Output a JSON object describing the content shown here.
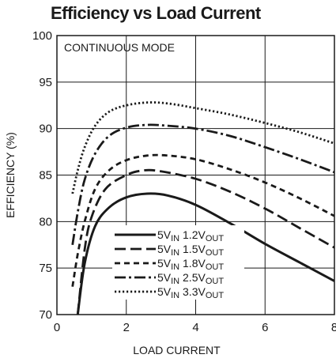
{
  "chart_data": {
    "type": "line",
    "title": "Efficiency vs Load Current",
    "xlabel": "LOAD CURRENT",
    "ylabel": "EFFICIENCY (%)",
    "xlim": [
      0,
      8
    ],
    "ylim": [
      70,
      100
    ],
    "x_ticks": [
      "0",
      "2",
      "4",
      "6",
      "8"
    ],
    "y_ticks": [
      "70",
      "75",
      "80",
      "85",
      "90",
      "95",
      "100"
    ],
    "grid": true,
    "annotation": "CONTINUOUS MODE",
    "legend_position": "bottom-center",
    "series": [
      {
        "name": "5VIN 1.2VOUT",
        "legend": {
          "a": "5V",
          "b": "IN",
          "c": " 1.2V",
          "d": "OUT"
        },
        "style": "solid",
        "points": [
          [
            0.6,
            70
          ],
          [
            0.8,
            75.5
          ],
          [
            1.1,
            79.5
          ],
          [
            1.5,
            81.5
          ],
          [
            2,
            82.6
          ],
          [
            2.6,
            83.0
          ],
          [
            3.2,
            82.8
          ],
          [
            4,
            81.8
          ],
          [
            5,
            79.8
          ],
          [
            6,
            77.6
          ],
          [
            7,
            75.6
          ],
          [
            8,
            73.6
          ]
        ]
      },
      {
        "name": "5VIN 1.5VOUT",
        "legend": {
          "a": "5V",
          "b": "IN",
          "c": " 1.5V",
          "d": "OUT"
        },
        "style": "dash",
        "points": [
          [
            0.6,
            70
          ],
          [
            0.8,
            77
          ],
          [
            1.0,
            80.5
          ],
          [
            1.4,
            83.5
          ],
          [
            2,
            85.0
          ],
          [
            2.5,
            85.5
          ],
          [
            3,
            85.4
          ],
          [
            4,
            84.6
          ],
          [
            5,
            83.2
          ],
          [
            6,
            81.4
          ],
          [
            7,
            79.3
          ],
          [
            8,
            77.2
          ]
        ]
      },
      {
        "name": "5VIN 1.8VOUT",
        "legend": {
          "a": "5V",
          "b": "IN",
          "c": " 1.8V",
          "d": "OUT"
        },
        "style": "shortdash",
        "points": [
          [
            0.45,
            73
          ],
          [
            0.6,
            76.5
          ],
          [
            0.8,
            80
          ],
          [
            1.1,
            83.5
          ],
          [
            1.5,
            85.5
          ],
          [
            2,
            86.6
          ],
          [
            2.6,
            87.1
          ],
          [
            3.2,
            87.1
          ],
          [
            4,
            86.7
          ],
          [
            5,
            85.6
          ],
          [
            6,
            84.2
          ],
          [
            7,
            82.5
          ],
          [
            8,
            80.6
          ]
        ]
      },
      {
        "name": "5VIN 2.5VOUT",
        "legend": {
          "a": "5V",
          "b": "IN",
          "c": " 2.5V",
          "d": "OUT"
        },
        "style": "dashdot",
        "points": [
          [
            0.45,
            77.5
          ],
          [
            0.6,
            81
          ],
          [
            0.8,
            84.5
          ],
          [
            1.1,
            87.3
          ],
          [
            1.5,
            89.2
          ],
          [
            2,
            90.1
          ],
          [
            2.6,
            90.4
          ],
          [
            3.2,
            90.3
          ],
          [
            4,
            90.0
          ],
          [
            5,
            89.2
          ],
          [
            6,
            88.0
          ],
          [
            7,
            86.7
          ],
          [
            8,
            85.3
          ]
        ]
      },
      {
        "name": "5VIN 3.3VOUT",
        "legend": {
          "a": "5V",
          "b": "IN",
          "c": " 3.3V",
          "d": "OUT"
        },
        "style": "dot",
        "points": [
          [
            0.45,
            83
          ],
          [
            0.6,
            85.5
          ],
          [
            0.8,
            88
          ],
          [
            1.1,
            90.3
          ],
          [
            1.5,
            91.8
          ],
          [
            2,
            92.5
          ],
          [
            2.6,
            92.8
          ],
          [
            3.2,
            92.7
          ],
          [
            4,
            92.2
          ],
          [
            5,
            91.5
          ],
          [
            6,
            90.6
          ],
          [
            7,
            89.6
          ],
          [
            8,
            88.4
          ]
        ]
      }
    ]
  }
}
